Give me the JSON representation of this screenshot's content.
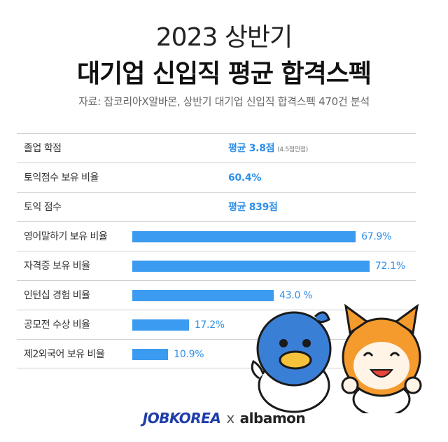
{
  "header": {
    "title_line1": "2023 상반기",
    "title_line2": "대기업 신입직 평균 합격스펙",
    "source": "자료: 잡코리아X알바몬,  상반기 대기업 신입직 합격스펙 470건 분석"
  },
  "text_rows": [
    {
      "label": "졸업 학점",
      "text": "평균 3.8점",
      "note": "(4.5점만점)"
    },
    {
      "label": "토익점수 보유 비율",
      "text": "60.4%",
      "note": ""
    },
    {
      "label": "토익 점수",
      "text": "평균 839점",
      "note": ""
    }
  ],
  "chart_data": {
    "type": "bar",
    "orientation": "horizontal",
    "categories": [
      "영어말하기 보유 비율",
      "자격증 보유 비율",
      "인턴십 경험 비율",
      "공모전 수상 비율",
      "제2외국어 보유 비율"
    ],
    "values": [
      67.9,
      72.1,
      43.0,
      17.2,
      10.9
    ],
    "value_labels": [
      "67.9%",
      "72.1%",
      "43.0  %",
      "17.2%",
      "10.9%"
    ],
    "xlim": [
      0,
      100
    ],
    "colors": {
      "bar": "#3b9bf0",
      "value_text": "#2f8fe8"
    }
  },
  "footer": {
    "logo_left": "JOBKOREA",
    "separator": "x",
    "logo_right": "albamon"
  }
}
